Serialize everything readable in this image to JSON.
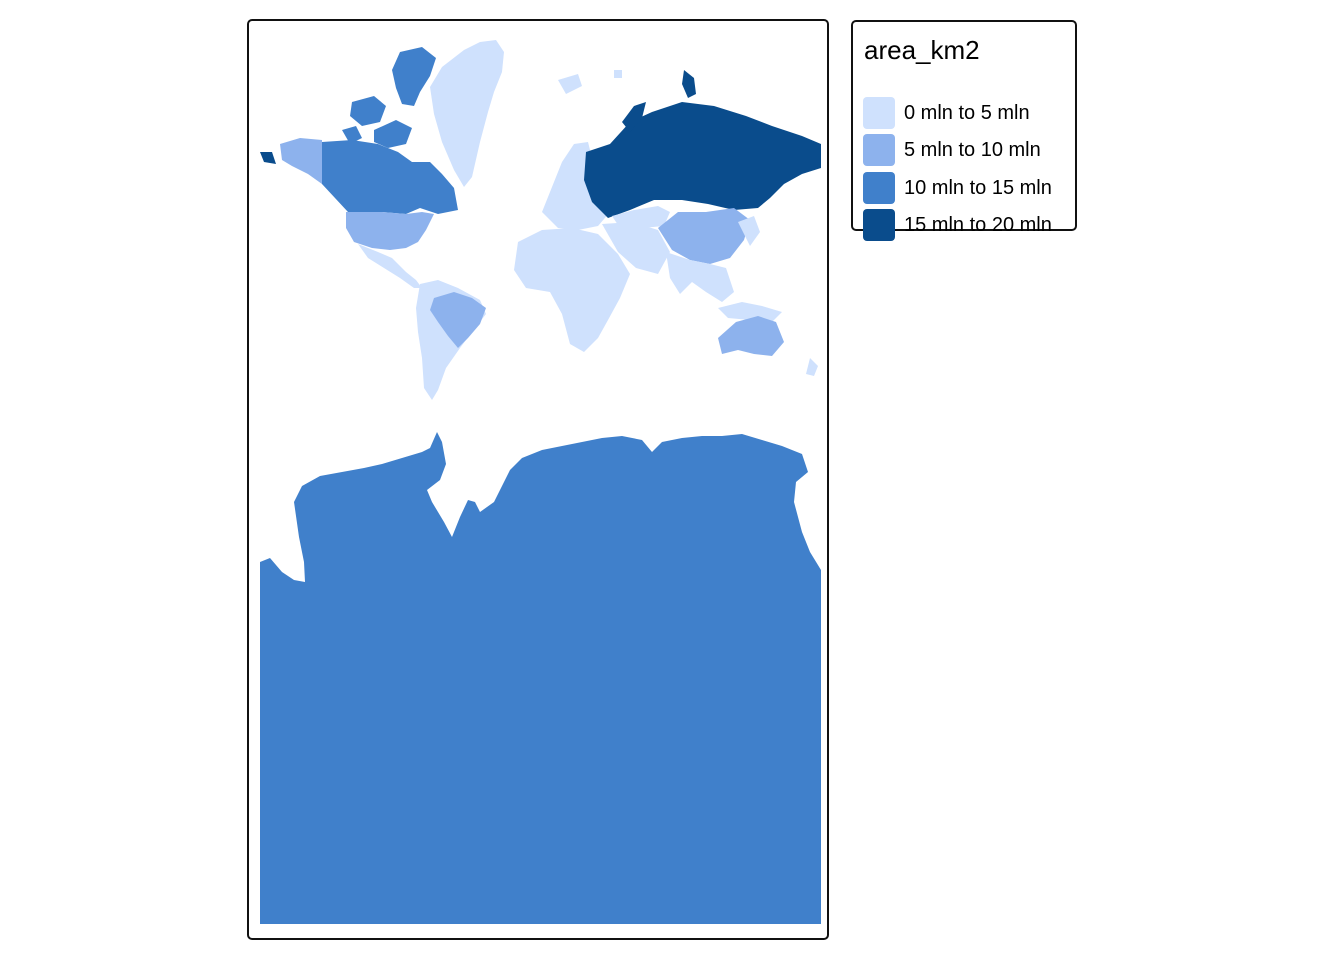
{
  "legend": {
    "title": "area_km2",
    "classes": [
      {
        "label": "0 mln to 5 mln",
        "color": "#cfe1fd"
      },
      {
        "label": "5 mln to 10 mln",
        "color": "#8db2ed"
      },
      {
        "label": "10 mln to 15 mln",
        "color": "#4080cb"
      },
      {
        "label": "15 mln to 20 mln",
        "color": "#0a4c8c"
      }
    ]
  },
  "map": {
    "ocean_color": "#ffffff",
    "border_color": "#111111"
  }
}
